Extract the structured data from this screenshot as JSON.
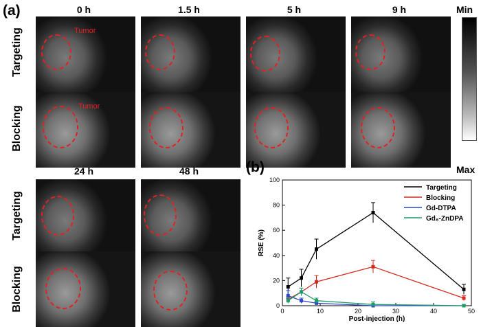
{
  "panel_a": {
    "label": "(a)",
    "times_top": [
      "0 h",
      "1.5 h",
      "5 h",
      "9 h"
    ],
    "times_bottom": [
      "24 h",
      "48 h"
    ],
    "row_labels": [
      "Targeting",
      "Blocking",
      "Targeting",
      "Blocking"
    ],
    "tumor_label": "Tumor",
    "colorbar": {
      "min_label": "Min",
      "max_label": "Max"
    }
  },
  "panel_b": {
    "label": "(b)"
  },
  "chart_data": {
    "type": "line",
    "xlabel": "Post-injection (h)",
    "ylabel": "RSE (%)",
    "xlim": [
      0,
      50
    ],
    "ylim": [
      0,
      100
    ],
    "xticks": [
      0,
      10,
      20,
      30,
      40,
      50
    ],
    "yticks": [
      0,
      20,
      40,
      60,
      80,
      100
    ],
    "legend_position": "top-right",
    "series": [
      {
        "name": "Targeting",
        "color": "#000000",
        "x": [
          1.5,
          5,
          9,
          24,
          48
        ],
        "y": [
          15,
          22,
          45,
          74,
          13
        ],
        "err": [
          7,
          7,
          8,
          8,
          4
        ]
      },
      {
        "name": "Blocking",
        "color": "#d42a1e",
        "x": [
          1.5,
          5,
          9,
          24,
          48
        ],
        "y": [
          5,
          11,
          19,
          31,
          6
        ],
        "err": [
          2,
          3,
          5,
          5,
          2
        ]
      },
      {
        "name": "Gd-DTPA",
        "color": "#2a47c4",
        "x": [
          1.5,
          5,
          9,
          24,
          48
        ],
        "y": [
          8,
          4,
          2,
          0,
          0
        ],
        "err": [
          4,
          2,
          1,
          1,
          1
        ]
      },
      {
        "name": "Gd₈-ZnDPA",
        "color": "#1f9a6a",
        "x": [
          1.5,
          5,
          9,
          24,
          48
        ],
        "y": [
          4,
          11,
          4,
          1,
          0
        ],
        "err": [
          2,
          3,
          2,
          2,
          1
        ]
      }
    ]
  }
}
